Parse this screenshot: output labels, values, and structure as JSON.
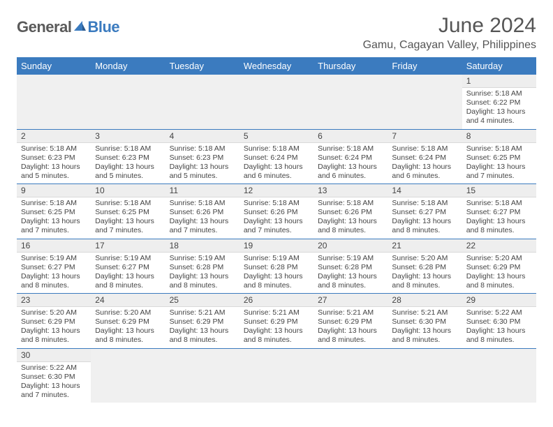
{
  "logo": {
    "text1": "General",
    "text2": "Blue"
  },
  "title": "June 2024",
  "location": "Gamu, Cagayan Valley, Philippines",
  "header_color": "#3b7bbf",
  "day_headers": [
    "Sunday",
    "Monday",
    "Tuesday",
    "Wednesday",
    "Thursday",
    "Friday",
    "Saturday"
  ],
  "weeks": [
    [
      null,
      null,
      null,
      null,
      null,
      null,
      {
        "d": "1",
        "sr": "5:18 AM",
        "ss": "6:22 PM",
        "dl": "13 hours and 4 minutes."
      }
    ],
    [
      {
        "d": "2",
        "sr": "5:18 AM",
        "ss": "6:23 PM",
        "dl": "13 hours and 5 minutes."
      },
      {
        "d": "3",
        "sr": "5:18 AM",
        "ss": "6:23 PM",
        "dl": "13 hours and 5 minutes."
      },
      {
        "d": "4",
        "sr": "5:18 AM",
        "ss": "6:23 PM",
        "dl": "13 hours and 5 minutes."
      },
      {
        "d": "5",
        "sr": "5:18 AM",
        "ss": "6:24 PM",
        "dl": "13 hours and 6 minutes."
      },
      {
        "d": "6",
        "sr": "5:18 AM",
        "ss": "6:24 PM",
        "dl": "13 hours and 6 minutes."
      },
      {
        "d": "7",
        "sr": "5:18 AM",
        "ss": "6:24 PM",
        "dl": "13 hours and 6 minutes."
      },
      {
        "d": "8",
        "sr": "5:18 AM",
        "ss": "6:25 PM",
        "dl": "13 hours and 7 minutes."
      }
    ],
    [
      {
        "d": "9",
        "sr": "5:18 AM",
        "ss": "6:25 PM",
        "dl": "13 hours and 7 minutes."
      },
      {
        "d": "10",
        "sr": "5:18 AM",
        "ss": "6:25 PM",
        "dl": "13 hours and 7 minutes."
      },
      {
        "d": "11",
        "sr": "5:18 AM",
        "ss": "6:26 PM",
        "dl": "13 hours and 7 minutes."
      },
      {
        "d": "12",
        "sr": "5:18 AM",
        "ss": "6:26 PM",
        "dl": "13 hours and 7 minutes."
      },
      {
        "d": "13",
        "sr": "5:18 AM",
        "ss": "6:26 PM",
        "dl": "13 hours and 8 minutes."
      },
      {
        "d": "14",
        "sr": "5:18 AM",
        "ss": "6:27 PM",
        "dl": "13 hours and 8 minutes."
      },
      {
        "d": "15",
        "sr": "5:18 AM",
        "ss": "6:27 PM",
        "dl": "13 hours and 8 minutes."
      }
    ],
    [
      {
        "d": "16",
        "sr": "5:19 AM",
        "ss": "6:27 PM",
        "dl": "13 hours and 8 minutes."
      },
      {
        "d": "17",
        "sr": "5:19 AM",
        "ss": "6:27 PM",
        "dl": "13 hours and 8 minutes."
      },
      {
        "d": "18",
        "sr": "5:19 AM",
        "ss": "6:28 PM",
        "dl": "13 hours and 8 minutes."
      },
      {
        "d": "19",
        "sr": "5:19 AM",
        "ss": "6:28 PM",
        "dl": "13 hours and 8 minutes."
      },
      {
        "d": "20",
        "sr": "5:19 AM",
        "ss": "6:28 PM",
        "dl": "13 hours and 8 minutes."
      },
      {
        "d": "21",
        "sr": "5:20 AM",
        "ss": "6:28 PM",
        "dl": "13 hours and 8 minutes."
      },
      {
        "d": "22",
        "sr": "5:20 AM",
        "ss": "6:29 PM",
        "dl": "13 hours and 8 minutes."
      }
    ],
    [
      {
        "d": "23",
        "sr": "5:20 AM",
        "ss": "6:29 PM",
        "dl": "13 hours and 8 minutes."
      },
      {
        "d": "24",
        "sr": "5:20 AM",
        "ss": "6:29 PM",
        "dl": "13 hours and 8 minutes."
      },
      {
        "d": "25",
        "sr": "5:21 AM",
        "ss": "6:29 PM",
        "dl": "13 hours and 8 minutes."
      },
      {
        "d": "26",
        "sr": "5:21 AM",
        "ss": "6:29 PM",
        "dl": "13 hours and 8 minutes."
      },
      {
        "d": "27",
        "sr": "5:21 AM",
        "ss": "6:29 PM",
        "dl": "13 hours and 8 minutes."
      },
      {
        "d": "28",
        "sr": "5:21 AM",
        "ss": "6:30 PM",
        "dl": "13 hours and 8 minutes."
      },
      {
        "d": "29",
        "sr": "5:22 AM",
        "ss": "6:30 PM",
        "dl": "13 hours and 8 minutes."
      }
    ],
    [
      {
        "d": "30",
        "sr": "5:22 AM",
        "ss": "6:30 PM",
        "dl": "13 hours and 7 minutes."
      },
      null,
      null,
      null,
      null,
      null,
      null
    ]
  ],
  "labels": {
    "sunrise": "Sunrise: ",
    "sunset": "Sunset: ",
    "daylight": "Daylight: "
  }
}
